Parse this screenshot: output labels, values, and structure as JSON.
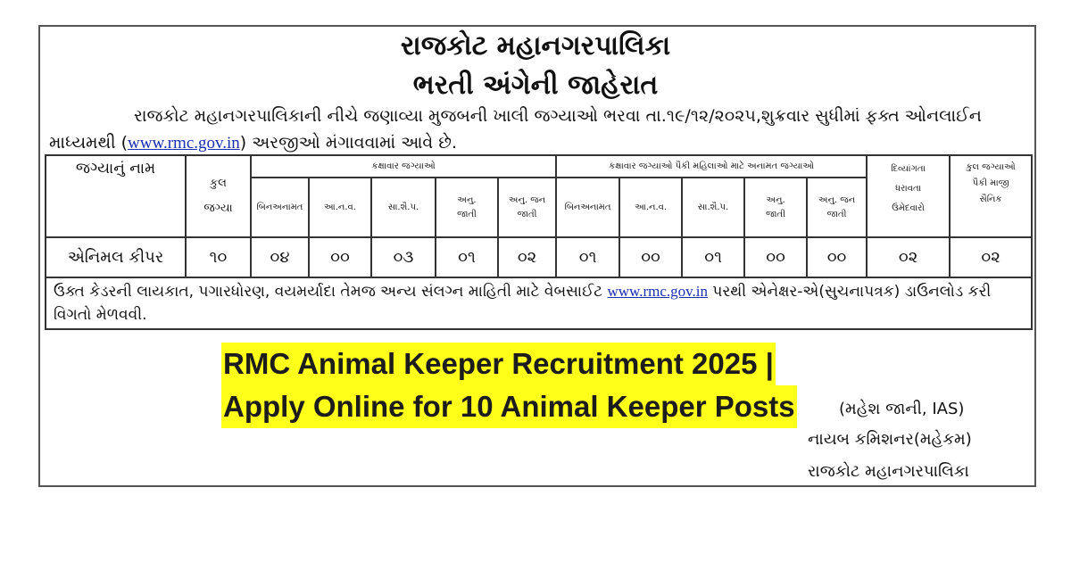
{
  "header": {
    "title_line1": "રાજકોટ મહાનગરપાલિકા",
    "title_line2": "ભરતી અંગેની જાહેરાત"
  },
  "intro": {
    "text_before_link": "રાજકોટ  મહાનગરપાલિકાની નીચે જણાવ્યા મુજબની ખાલી જગ્યાઓ ભરવા તા.૧૯/૧૨/૨૦૨૫,શુક્રવાર સુધીમાં ફક્ત ઓનલાઈન માધ્યમથી (",
    "link": "www.rmc.gov.in",
    "text_after_link": ") અરજીઓ મંગાવવામાં આવે છે."
  },
  "table": {
    "col_post_name": "જગ્યાનું નામ",
    "col_total": "કુલ જગ્યા",
    "group_category": "કક્ષાવાર જગ્યાઓ",
    "group_women": "કક્ષાવાર જગ્યાઓ પૈકી મહિલાઓ માટે અનામત જગ્યાઓ",
    "col_disabled": "દિવ્યાંગતા ધરાવતા ઉમેદવારો",
    "col_ex_servicemen": "કુલ જગ્યાઓ પૈકી માજી સૈનિક",
    "subcols": [
      "બિનઅનામત",
      "આ.ન.વ.",
      "સા.શૈ.પ.",
      "અનુ. જાતી",
      "અનુ. જન જાતી"
    ],
    "row": {
      "post": "એનિમલ કીપર",
      "total": "૧૦",
      "category": [
        "૦૪",
        "૦૦",
        "૦૩",
        "૦૧",
        "૦૨"
      ],
      "women": [
        "૦૧",
        "૦૦",
        "૦૧",
        "૦૦",
        "૦૦"
      ],
      "disabled": "૦૨",
      "ex_servicemen": "૦૨"
    },
    "footer": {
      "text_before_link": "ઉક્ત કેડરની લાયકાત, પગારધોરણ, વયમર્યાદા તેમજ અન્ય સંલગ્ન માહિતી માટે વેબસાઈટ ",
      "link": "www.rmc.gov.in",
      "text_after_link": " પરથી એનેક્ષર-એ(સુચનાપત્રક) ડાઉનલોડ કરી વિગતો મેળવવી."
    }
  },
  "banner": {
    "line1": "RMC Animal Keeper Recruitment 2025 |",
    "line2": "Apply Online for 10 Animal Keeper Posts",
    "color": "#ffff1a"
  },
  "signature": {
    "name": "(મહેશ જાની, IAS)",
    "designation": "નાયબ કમિશનર(મહેકમ)",
    "org": "રાજકોટ મહાનગરપાલિકા"
  }
}
